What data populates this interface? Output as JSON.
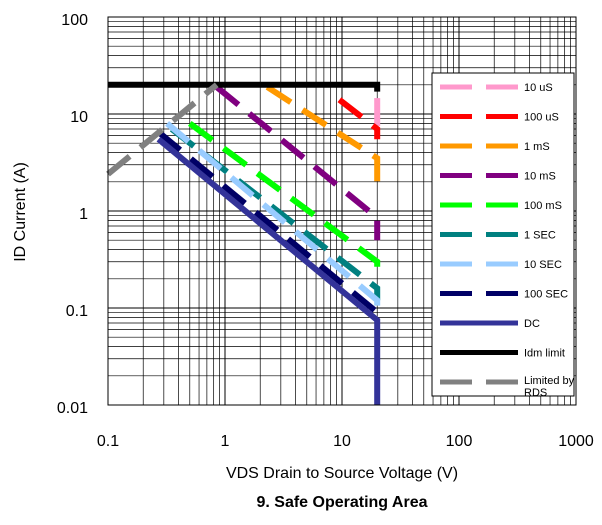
{
  "chart_data": {
    "type": "line",
    "title": "9. Safe Operating Area",
    "xlabel": "VDS Drain to Source Voltage (V)",
    "ylabel": "ID Current (A)",
    "x_scale": "log",
    "y_scale": "log",
    "xlim": [
      0.1,
      1000
    ],
    "ylim": [
      0.01,
      100
    ],
    "x_ticks": [
      "0.1",
      "1",
      "10",
      "100",
      "1000"
    ],
    "y_ticks": [
      "0.01",
      "0.1",
      "1",
      "10",
      "100"
    ],
    "grid": true,
    "legend_position": "right",
    "series": [
      {
        "name": "10 uS",
        "color": "#FF99CC",
        "dashed": true,
        "x": [
          20,
          20
        ],
        "y": [
          7.5,
          20
        ]
      },
      {
        "name": "100 uS",
        "color": "#FF0000",
        "dashed": true,
        "x": [
          9.5,
          20,
          20
        ],
        "y": [
          14,
          7,
          5.5
        ]
      },
      {
        "name": "1 mS",
        "color": "#FF9900",
        "dashed": true,
        "x": [
          2.3,
          20,
          20
        ],
        "y": [
          19,
          3.5,
          1.8
        ]
      },
      {
        "name": "10 mS",
        "color": "#800080",
        "dashed": true,
        "x": [
          0.85,
          20,
          20
        ],
        "y": [
          19,
          0.85,
          0.5
        ]
      },
      {
        "name": "100 mS",
        "color": "#00FF00",
        "dashed": true,
        "x": [
          0.5,
          20,
          20
        ],
        "y": [
          8,
          0.3,
          0.2
        ]
      },
      {
        "name": "1 SEC",
        "color": "#008080",
        "dashed": true,
        "x": [
          0.35,
          20,
          20
        ],
        "y": [
          7,
          0.16,
          0.12
        ]
      },
      {
        "name": "10 SEC",
        "color": "#99CCFF",
        "dashed": true,
        "x": [
          0.32,
          20,
          20
        ],
        "y": [
          8,
          0.12,
          0.1
        ]
      },
      {
        "name": "100 SEC",
        "color": "#000066",
        "dashed": true,
        "x": [
          0.27,
          20
        ],
        "y": [
          6.5,
          0.09
        ]
      },
      {
        "name": "DC",
        "color": "#333399",
        "dashed": false,
        "x": [
          0.27,
          20,
          20
        ],
        "y": [
          5.5,
          0.075,
          0.01
        ]
      },
      {
        "name": "Idm limit",
        "color": "#000000",
        "dashed": false,
        "x": [
          0.1,
          20,
          20
        ],
        "y": [
          20,
          20,
          17
        ]
      },
      {
        "name": "Limited by RDS",
        "color": "#808080",
        "dashed": true,
        "x": [
          0.1,
          0.85
        ],
        "y": [
          2.4,
          20
        ]
      }
    ]
  }
}
